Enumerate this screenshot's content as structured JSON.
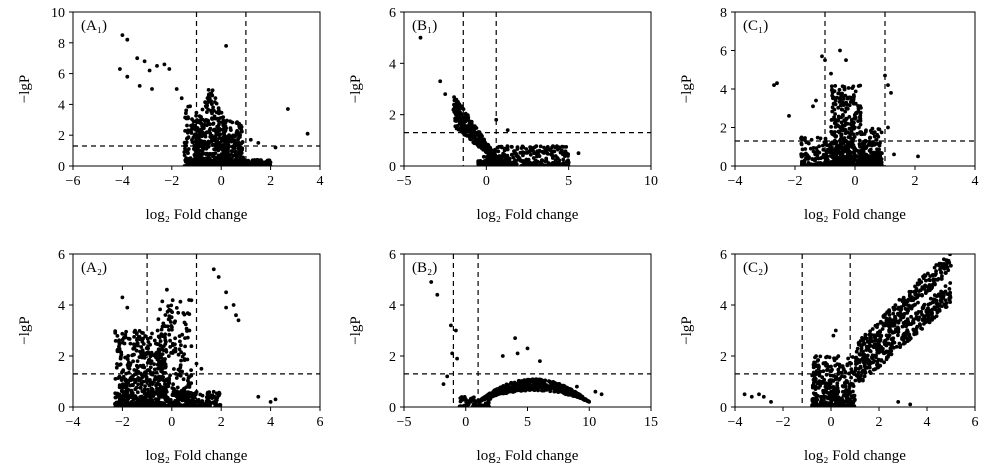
{
  "figure": {
    "y_axis_label": "−lgP",
    "x_axis_label": "log₂ Fold change"
  },
  "chart_data": [
    {
      "type": "scatter",
      "panel_label": "(A₁)",
      "xlabel": "log₂ Fold change",
      "ylabel": "−lgP",
      "xlim": [
        -6,
        4
      ],
      "ylim": [
        0,
        10
      ],
      "xticks": [
        -6,
        -4,
        -2,
        0,
        2,
        4
      ],
      "yticks": [
        0,
        2,
        4,
        6,
        8,
        10
      ],
      "x_thresholds": [
        -1,
        1
      ],
      "y_threshold": 1.3,
      "clusters": [
        {
          "x": [
            -1.1,
            0.3
          ],
          "y": [
            0,
            5.5
          ],
          "n": 500,
          "shape": "triangle-up"
        },
        {
          "x": [
            -1.5,
            -0.9
          ],
          "y": [
            0,
            4
          ],
          "n": 100,
          "shape": "uniform"
        },
        {
          "x": [
            0.1,
            0.9
          ],
          "y": [
            0,
            3
          ],
          "n": 200,
          "shape": "uniform"
        },
        {
          "x": [
            0.5,
            2.0
          ],
          "y": [
            0,
            0.4
          ],
          "n": 150,
          "shape": "uniform"
        }
      ],
      "points": [
        [
          -4.0,
          8.5
        ],
        [
          -3.8,
          8.2
        ],
        [
          -3.4,
          7.0
        ],
        [
          -3.1,
          6.8
        ],
        [
          -2.9,
          6.2
        ],
        [
          -2.6,
          6.5
        ],
        [
          -2.3,
          6.6
        ],
        [
          -2.1,
          6.3
        ],
        [
          -4.1,
          6.3
        ],
        [
          -3.8,
          5.8
        ],
        [
          -3.3,
          5.2
        ],
        [
          -2.8,
          5.0
        ],
        [
          0.2,
          7.8
        ],
        [
          2.7,
          3.7
        ],
        [
          3.5,
          2.1
        ],
        [
          1.2,
          1.7
        ],
        [
          1.5,
          1.5
        ],
        [
          2.2,
          1.2
        ],
        [
          -1.8,
          5.0
        ],
        [
          -1.6,
          4.4
        ]
      ],
      "series": [
        {
          "name": "",
          "values": []
        }
      ]
    },
    {
      "type": "scatter",
      "panel_label": "(B₁)",
      "xlabel": "log₂ Fold change",
      "ylabel": "−lgP",
      "xlim": [
        -5,
        10
      ],
      "ylim": [
        0,
        6
      ],
      "xticks": [
        -5,
        0,
        5,
        10
      ],
      "yticks": [
        0,
        2,
        4,
        6
      ],
      "x_thresholds": [
        -1.4,
        0.6
      ],
      "y_threshold": 1.3,
      "clusters": [
        {
          "x": [
            -2.0,
            1.0
          ],
          "y": [
            0,
            2.8
          ],
          "n": 400,
          "shape": "v-left"
        },
        {
          "x": [
            0.0,
            5.0
          ],
          "y": [
            0,
            0.8
          ],
          "n": 300,
          "shape": "uniform"
        },
        {
          "x": [
            -0.5,
            1.5
          ],
          "y": [
            0,
            0.4
          ],
          "n": 120,
          "shape": "uniform"
        }
      ],
      "points": [
        [
          -4.0,
          5.0
        ],
        [
          -2.8,
          3.3
        ],
        [
          -2.5,
          2.8
        ],
        [
          5.6,
          0.5
        ],
        [
          4.8,
          0.4
        ],
        [
          1.3,
          1.4
        ],
        [
          0.6,
          1.8
        ]
      ],
      "series": [
        {
          "name": "",
          "values": []
        }
      ]
    },
    {
      "type": "scatter",
      "panel_label": "(C₁)",
      "xlabel": "log₂ Fold change",
      "ylabel": "−lgP",
      "xlim": [
        -4,
        4
      ],
      "ylim": [
        0,
        8
      ],
      "xticks": [
        -4,
        -2,
        0,
        2,
        4
      ],
      "yticks": [
        0,
        2,
        4,
        6,
        8
      ],
      "x_thresholds": [
        -1,
        1
      ],
      "y_threshold": 1.3,
      "clusters": [
        {
          "x": [
            -0.8,
            0.2
          ],
          "y": [
            0,
            4.2
          ],
          "n": 450,
          "shape": "uniform"
        },
        {
          "x": [
            -1.8,
            -0.6
          ],
          "y": [
            0,
            1.5
          ],
          "n": 150,
          "shape": "uniform"
        },
        {
          "x": [
            0.2,
            0.9
          ],
          "y": [
            0,
            2.0
          ],
          "n": 150,
          "shape": "uniform"
        }
      ],
      "points": [
        [
          -2.7,
          4.2
        ],
        [
          -2.6,
          4.3
        ],
        [
          -2.2,
          2.6
        ],
        [
          -1.1,
          5.7
        ],
        [
          -1.0,
          5.5
        ],
        [
          -0.8,
          4.8
        ],
        [
          -0.5,
          6.0
        ],
        [
          -0.3,
          5.5
        ],
        [
          1.0,
          4.7
        ],
        [
          1.1,
          4.2
        ],
        [
          1.2,
          3.8
        ],
        [
          1.1,
          2.0
        ],
        [
          2.1,
          0.5
        ],
        [
          1.3,
          0.6
        ],
        [
          -1.4,
          3.1
        ],
        [
          -1.3,
          3.4
        ]
      ],
      "series": [
        {
          "name": "",
          "values": []
        }
      ]
    },
    {
      "type": "scatter",
      "panel_label": "(A₂)",
      "xlabel": "log₂ Fold change",
      "ylabel": "−lgP",
      "xlim": [
        -4,
        6
      ],
      "ylim": [
        0,
        6
      ],
      "xticks": [
        -4,
        -2,
        0,
        2,
        4,
        6
      ],
      "yticks": [
        0,
        2,
        4,
        6
      ],
      "x_thresholds": [
        -1,
        1
      ],
      "y_threshold": 1.3,
      "clusters": [
        {
          "x": [
            -2.3,
            -0.2
          ],
          "y": [
            0,
            3.0
          ],
          "n": 550,
          "shape": "uniform"
        },
        {
          "x": [
            -0.6,
            0.8
          ],
          "y": [
            0,
            4.2
          ],
          "n": 250,
          "shape": "uniform"
        },
        {
          "x": [
            0.2,
            2.0
          ],
          "y": [
            0,
            0.6
          ],
          "n": 150,
          "shape": "uniform"
        }
      ],
      "points": [
        [
          -2.0,
          4.3
        ],
        [
          -1.8,
          3.9
        ],
        [
          1.7,
          5.4
        ],
        [
          1.9,
          5.1
        ],
        [
          2.2,
          4.5
        ],
        [
          2.5,
          4.0
        ],
        [
          2.6,
          3.6
        ],
        [
          2.7,
          3.4
        ],
        [
          2.2,
          3.9
        ],
        [
          3.5,
          0.4
        ],
        [
          4.2,
          0.3
        ],
        [
          4.0,
          0.2
        ],
        [
          -0.2,
          4.6
        ],
        [
          1.0,
          1.7
        ],
        [
          1.2,
          1.5
        ]
      ],
      "series": [
        {
          "name": "",
          "values": []
        }
      ]
    },
    {
      "type": "scatter",
      "panel_label": "(B₂)",
      "xlabel": "log₂ Fold change",
      "ylabel": "−lgP",
      "xlim": [
        -5,
        15
      ],
      "ylim": [
        0,
        6
      ],
      "xticks": [
        -5,
        0,
        5,
        10,
        15
      ],
      "yticks": [
        0,
        2,
        4,
        6
      ],
      "x_thresholds": [
        -1,
        1
      ],
      "y_threshold": 1.3,
      "clusters": [
        {
          "x": [
            1.0,
            10.0
          ],
          "y": [
            0.2,
            1.1
          ],
          "n": 600,
          "shape": "hump"
        },
        {
          "x": [
            -0.5,
            2.0
          ],
          "y": [
            0,
            0.4
          ],
          "n": 80,
          "shape": "uniform"
        }
      ],
      "points": [
        [
          -2.8,
          4.9
        ],
        [
          -2.3,
          4.4
        ],
        [
          -1.2,
          3.2
        ],
        [
          -0.8,
          3.0
        ],
        [
          -1.1,
          2.1
        ],
        [
          -0.7,
          1.9
        ],
        [
          -1.5,
          1.2
        ],
        [
          -1.8,
          0.9
        ],
        [
          4.0,
          2.7
        ],
        [
          5.0,
          2.3
        ],
        [
          3.0,
          2.0
        ],
        [
          6.0,
          1.8
        ],
        [
          9.0,
          0.8
        ],
        [
          10.5,
          0.6
        ],
        [
          11.0,
          0.5
        ],
        [
          4.2,
          2.1
        ]
      ],
      "series": [
        {
          "name": "",
          "values": []
        }
      ]
    },
    {
      "type": "scatter",
      "panel_label": "(C₂)",
      "xlabel": "log₂ Fold change",
      "ylabel": "−lgP",
      "xlim": [
        -4,
        6
      ],
      "ylim": [
        0,
        6
      ],
      "xticks": [
        -4,
        -2,
        0,
        2,
        4,
        6
      ],
      "yticks": [
        0,
        2,
        4,
        6
      ],
      "x_thresholds": [
        -1.2,
        0.8
      ],
      "y_threshold": 1.3,
      "clusters": [
        {
          "x": [
            -0.8,
            1.0
          ],
          "y": [
            0,
            2.0
          ],
          "n": 350,
          "shape": "uniform"
        },
        {
          "x": [
            1.0,
            5.0
          ],
          "y": [
            2.0,
            5.8
          ],
          "n": 300,
          "shape": "band-hi"
        },
        {
          "x": [
            1.0,
            5.0
          ],
          "y": [
            1.2,
            4.5
          ],
          "n": 300,
          "shape": "band-lo"
        }
      ],
      "points": [
        [
          -3.6,
          0.5
        ],
        [
          -3.3,
          0.4
        ],
        [
          -3.0,
          0.5
        ],
        [
          -2.8,
          0.4
        ],
        [
          -2.5,
          0.2
        ],
        [
          0.2,
          3.0
        ],
        [
          0.1,
          2.8
        ],
        [
          2.8,
          0.2
        ],
        [
          3.3,
          0.1
        ]
      ],
      "series": [
        {
          "name": "",
          "values": []
        }
      ]
    }
  ]
}
